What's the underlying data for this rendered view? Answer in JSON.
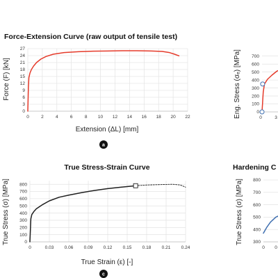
{
  "chart_data": [
    {
      "type": "line",
      "title": "Force-Extension Curve (raw output of tensile test)",
      "xlabel": "Extension (ΔL) [mm]",
      "ylabel": "Force (F) [kN]",
      "badge": "a",
      "xlim": [
        0,
        22
      ],
      "ylim": [
        0,
        27
      ],
      "xticks": [
        "0",
        "2",
        "4",
        "6",
        "8",
        "10",
        "12",
        "14",
        "16",
        "18",
        "20",
        "22"
      ],
      "yticks": [
        "0",
        "3",
        "6",
        "9",
        "12",
        "15",
        "18",
        "21",
        "24",
        "27"
      ],
      "grid": true,
      "series": [
        {
          "color": "#e53a2a",
          "x": [
            0,
            0.08,
            0.15,
            0.3,
            0.5,
            0.8,
            1.2,
            1.8,
            2.5,
            3.5,
            5,
            7,
            9,
            11,
            13,
            15,
            17,
            18.5,
            19.5,
            20.2,
            20.8
          ],
          "y": [
            0,
            10,
            14.5,
            16.5,
            18,
            19.5,
            21,
            22.5,
            23.6,
            24.6,
            25.3,
            25.7,
            25.9,
            26,
            26.1,
            26.1,
            26,
            25.8,
            25.3,
            24.6,
            23.9
          ]
        }
      ]
    },
    {
      "type": "line",
      "title": "True Stress-Strain Curve",
      "xlabel": "True Strain (ε) [-]",
      "ylabel": "True Stress (σ) [MPa]",
      "badge": "c",
      "xlim": [
        0,
        0.24
      ],
      "ylim": [
        0,
        850
      ],
      "xticks": [
        "0",
        "0.03",
        "0.06",
        "0.09",
        "0.12",
        "0.15",
        "0.18",
        "0.21",
        "0.24"
      ],
      "yticks": [
        "0",
        "100",
        "200",
        "300",
        "400",
        "500",
        "600",
        "700",
        "800"
      ],
      "grid": true,
      "series": [
        {
          "color": "#1e1e1e",
          "style": "solid",
          "x": [
            0,
            0.0015,
            0.003,
            0.006,
            0.01,
            0.02,
            0.03,
            0.045,
            0.06,
            0.08,
            0.1,
            0.12,
            0.14,
            0.163
          ],
          "y": [
            0,
            320,
            380,
            420,
            460,
            520,
            570,
            620,
            650,
            685,
            715,
            740,
            760,
            780
          ]
        },
        {
          "color": "#1e1e1e",
          "style": "dashed",
          "x": [
            0.163,
            0.18,
            0.2,
            0.22,
            0.232,
            0.24
          ],
          "y": [
            780,
            790,
            795,
            800,
            790,
            760
          ]
        }
      ],
      "markers": [
        {
          "shape": "square",
          "x": 0.163,
          "y": 780
        }
      ]
    },
    {
      "type": "line",
      "ylabel": "Eng. Stress (σₑ) [MPa]",
      "ylim": [
        0,
        750
      ],
      "yticks": [
        "0",
        "100",
        "200",
        "300",
        "400",
        "500",
        "600",
        "700"
      ],
      "xticks": [
        "0",
        "3"
      ],
      "series": [
        {
          "color": "#e53a2a",
          "x": [
            0,
            0.1,
            0.2,
            0.45,
            0.8,
            1.2,
            1.7,
            2.3,
            3,
            3.6
          ],
          "y": [
            0,
            250,
            350,
            410,
            460,
            510,
            550,
            580,
            605,
            620
          ]
        }
      ],
      "markers": [
        {
          "shape": "circle",
          "x": 0,
          "y": 0
        },
        {
          "shape": "circle",
          "x": 0.05,
          "y": 350
        }
      ]
    },
    {
      "type": "line",
      "title": "Hardening C",
      "ylabel": "True Stress (σ) [MPa]",
      "ylim": [
        300,
        800
      ],
      "yticks": [
        "300",
        "400",
        "500",
        "600",
        "700",
        "800"
      ],
      "xticks": [
        "0",
        "0"
      ],
      "series": [
        {
          "color": "#3f6fb0",
          "x": [
            0,
            0.1,
            0.2,
            0.35,
            0.5,
            0.7
          ],
          "y": [
            370,
            420,
            460,
            500,
            520,
            540
          ]
        }
      ]
    }
  ]
}
